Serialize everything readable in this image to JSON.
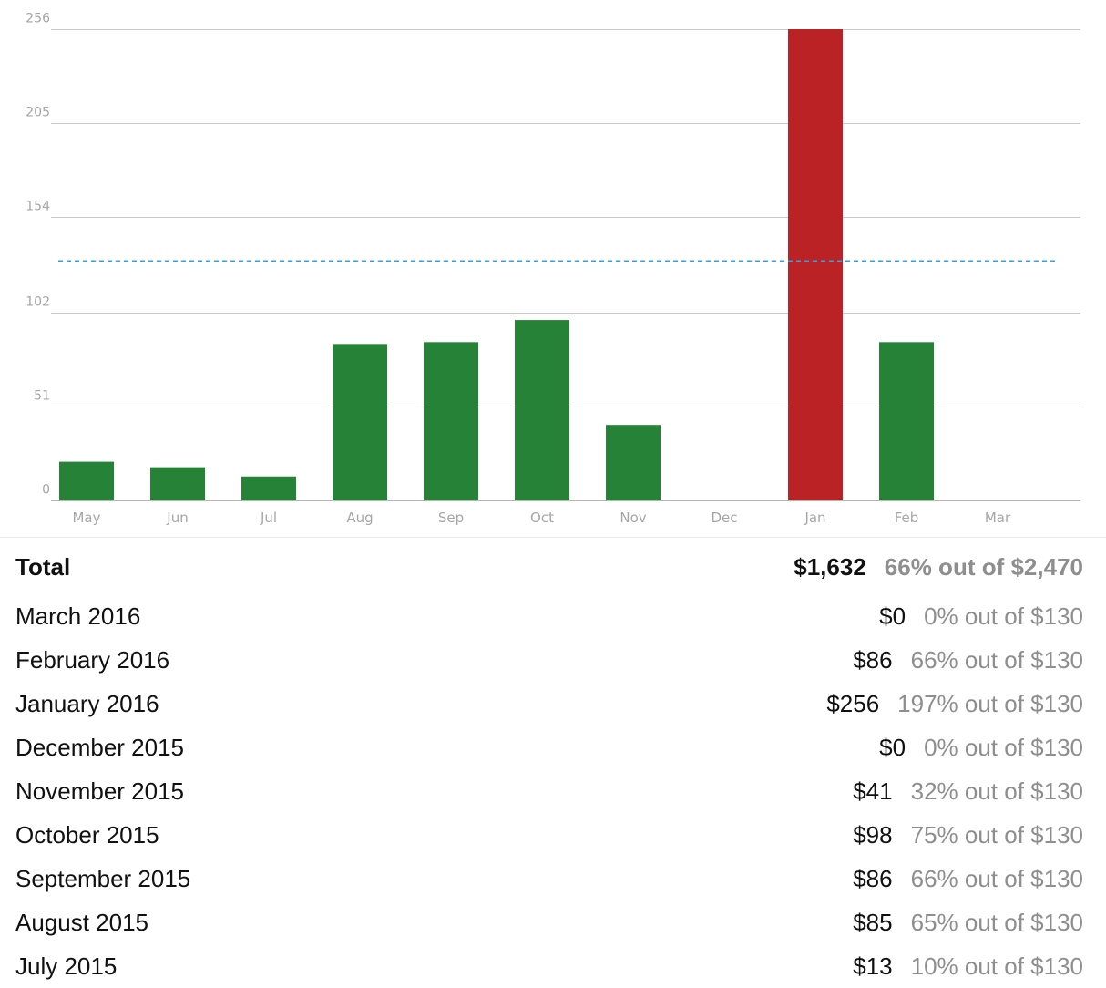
{
  "chart_data": {
    "type": "bar",
    "categories": [
      "May",
      "Jun",
      "Jul",
      "Aug",
      "Sep",
      "Oct",
      "Nov",
      "Dec",
      "Jan",
      "Feb",
      "Mar"
    ],
    "values": [
      21,
      18,
      13,
      85,
      86,
      98,
      41,
      0,
      256,
      86,
      0
    ],
    "bar_colors": [
      "#268237",
      "#268237",
      "#268237",
      "#268237",
      "#268237",
      "#268237",
      "#268237",
      "#268237",
      "#bb2226",
      "#268237",
      "#268237"
    ],
    "yticks": [
      0,
      51,
      102,
      154,
      205,
      256
    ],
    "ylim": [
      0,
      256
    ],
    "budget_line": 130,
    "budget_line_color": "#3a9fd6",
    "grid": true,
    "title": "",
    "xlabel": "",
    "ylabel": ""
  },
  "summary": {
    "total": {
      "label": "Total",
      "amount": "$1,632",
      "percent": "66% out of $2,470"
    },
    "months": [
      {
        "label": "March 2016",
        "amount": "$0",
        "percent": "0% out of $130"
      },
      {
        "label": "February 2016",
        "amount": "$86",
        "percent": "66% out of $130"
      },
      {
        "label": "January 2016",
        "amount": "$256",
        "percent": "197% out of $130"
      },
      {
        "label": "December 2015",
        "amount": "$0",
        "percent": "0% out of $130"
      },
      {
        "label": "November 2015",
        "amount": "$41",
        "percent": "32% out of $130"
      },
      {
        "label": "October 2015",
        "amount": "$98",
        "percent": "75% out of $130"
      },
      {
        "label": "September 2015",
        "amount": "$86",
        "percent": "66% out of $130"
      },
      {
        "label": "August 2015",
        "amount": "$85",
        "percent": "65% out of $130"
      },
      {
        "label": "July 2015",
        "amount": "$13",
        "percent": "10% out of $130"
      }
    ]
  }
}
